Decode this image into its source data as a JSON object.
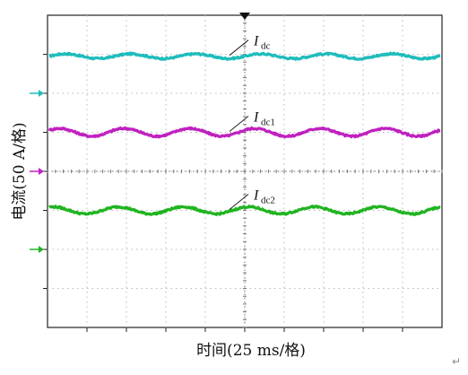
{
  "chart_data": {
    "type": "line",
    "xlabel": "时间(25 ms/格)",
    "ylabel": "电流(50 A/格)",
    "grid": true,
    "x_divisions": 10,
    "y_divisions": 8,
    "xlim_div": [
      0,
      10
    ],
    "ylim_div": [
      -4,
      4
    ],
    "series": [
      {
        "name": "dc",
        "label_main": "I",
        "label_sub": "dc",
        "color": "#1fbcbc",
        "level_div": 2.95,
        "ripple_div": 0.06,
        "ripple_cycles": 6
      },
      {
        "name": "dc1",
        "label_main": "I",
        "label_sub": "dc1",
        "color": "#c020c0",
        "level_div": 1.0,
        "ripple_div": 0.1,
        "ripple_cycles": 6
      },
      {
        "name": "dc2",
        "label_main": "I",
        "label_sub": "dc2",
        "color": "#20b420",
        "level_div": -1.0,
        "ripple_div": 0.09,
        "ripple_cycles": 6
      }
    ],
    "channel_markers": [
      {
        "color": "#1fbcbc",
        "level_div": 2.0
      },
      {
        "color": "#c020c0",
        "level_div": 0.0
      },
      {
        "color": "#20b420",
        "level_div": -2.0
      }
    ]
  },
  "return_mark": "↵"
}
